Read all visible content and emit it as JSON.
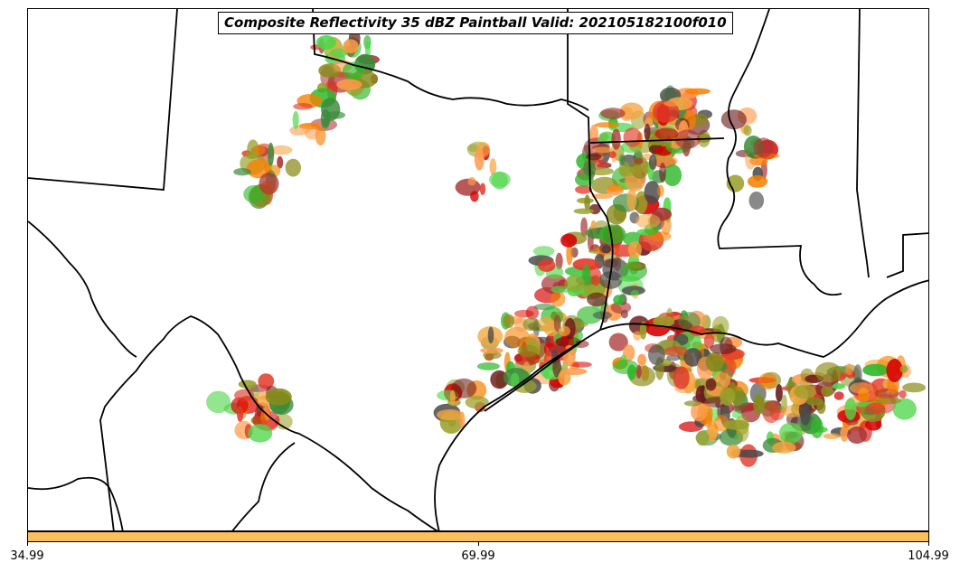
{
  "title": "Composite Reflectivity 35 dBZ Paintball Valid: 202105182100f010",
  "colorbar": {
    "ticks": [
      "34.99",
      "69.99",
      "104.99"
    ],
    "fill_color": "#fcbf5f"
  },
  "palette": [
    "#f77f00",
    "#ff9a4a",
    "#f4a641",
    "#e23a2a",
    "#d40000",
    "#a83232",
    "#8a8a1a",
    "#9aa02a",
    "#4fd64a",
    "#2fb82a",
    "#3a8a3a",
    "#4a4a4a",
    "#6a1a1a"
  ]
}
